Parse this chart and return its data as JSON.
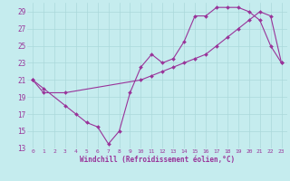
{
  "xlabel": "Windchill (Refroidissement éolien,°C)",
  "bg_color": "#c5ecee",
  "line_color": "#993399",
  "marker_color": "#993399",
  "xlim": [
    -0.5,
    23.5
  ],
  "ylim": [
    13,
    30
  ],
  "yticks": [
    13,
    15,
    17,
    19,
    21,
    23,
    25,
    27,
    29
  ],
  "xticks": [
    0,
    1,
    2,
    3,
    4,
    5,
    6,
    7,
    8,
    9,
    10,
    11,
    12,
    13,
    14,
    15,
    16,
    17,
    18,
    19,
    20,
    21,
    22,
    23
  ],
  "series1_x": [
    0,
    1,
    3,
    4,
    5,
    6,
    7,
    8,
    9,
    10,
    11,
    12,
    13,
    14,
    15,
    16,
    17,
    18,
    19,
    20,
    21,
    22,
    23
  ],
  "series1_y": [
    21,
    20.0,
    18.0,
    17.0,
    16.0,
    15.5,
    13.5,
    15.0,
    19.5,
    22.5,
    24.0,
    23.0,
    23.5,
    25.5,
    28.5,
    28.5,
    29.5,
    29.5,
    29.5,
    29.0,
    28.0,
    25.0,
    23.0
  ],
  "series2_x": [
    0,
    1,
    3,
    10,
    11,
    12,
    13,
    14,
    15,
    16,
    17,
    18,
    19,
    20,
    21,
    22,
    23
  ],
  "series2_y": [
    21,
    19.5,
    19.5,
    21.0,
    21.5,
    22.0,
    22.5,
    23.0,
    23.5,
    24.0,
    25.0,
    26.0,
    27.0,
    28.0,
    29.0,
    28.5,
    23.0
  ],
  "grid_color": "#aad8da",
  "marker_size": 2.0,
  "line_width": 0.8
}
